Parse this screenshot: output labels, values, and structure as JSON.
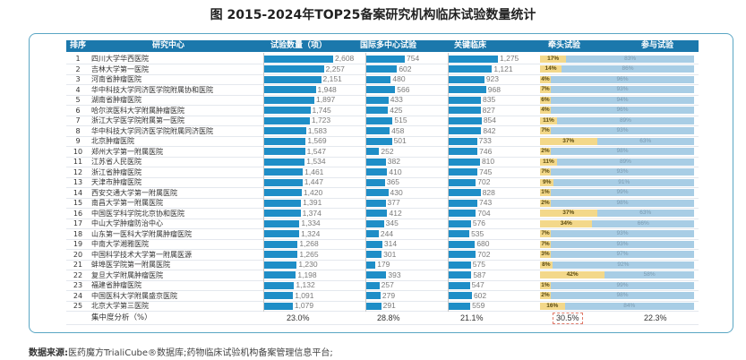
{
  "title": "图 2015-2024年TOP25备案研究机构临床试验数量统计",
  "colors": {
    "header_bg": "#1b78ac",
    "bar": "#1f8ec7",
    "lead": "#f3d88a",
    "participate": "#a8cde5",
    "frame": "#5aa6c4",
    "highlight": "#e07a6a"
  },
  "chart_data": {
    "type": "table",
    "title": "图 2015-2024年TOP25备案研究机构临床试验数量统计",
    "columns": [
      "排序",
      "研究中心",
      "试验数量（项）",
      "国际多中心试验",
      "关键临床",
      "牵头试验",
      "参与试验"
    ],
    "rows": [
      {
        "rank": "1",
        "center": "四川大学华西医院",
        "trials": 2608,
        "intl": 754,
        "key": 1275,
        "lead": 17,
        "participate": 83
      },
      {
        "rank": "2",
        "center": "吉林大学第一医院",
        "trials": 2257,
        "intl": 602,
        "key": 1121,
        "lead": 14,
        "participate": 86
      },
      {
        "rank": "3",
        "center": "河南省肿瘤医院",
        "trials": 2151,
        "intl": 480,
        "key": 923,
        "lead": 4,
        "participate": 96
      },
      {
        "rank": "4",
        "center": "华中科技大学同济医学院附属协和医院",
        "trials": 1948,
        "intl": 566,
        "key": 968,
        "lead": 7,
        "participate": 93
      },
      {
        "rank": "5",
        "center": "湖南省肿瘤医院",
        "trials": 1897,
        "intl": 433,
        "key": 835,
        "lead": 6,
        "participate": 94
      },
      {
        "rank": "6",
        "center": "哈尔滨医科大学附属肿瘤医院",
        "trials": 1745,
        "intl": 425,
        "key": 827,
        "lead": 4,
        "participate": 96
      },
      {
        "rank": "7",
        "center": "浙江大学医学院附属第一医院",
        "trials": 1723,
        "intl": 515,
        "key": 854,
        "lead": 11,
        "participate": 89
      },
      {
        "rank": "8",
        "center": "华中科技大学同济医学院附属同济医院",
        "trials": 1583,
        "intl": 458,
        "key": 842,
        "lead": 7,
        "participate": 93
      },
      {
        "rank": "9",
        "center": "北京肿瘤医院",
        "trials": 1569,
        "intl": 501,
        "key": 733,
        "lead": 37,
        "participate": 63
      },
      {
        "rank": "10",
        "center": "郑州大学第一附属医院",
        "trials": 1547,
        "intl": 252,
        "key": 746,
        "lead": 2,
        "participate": 98
      },
      {
        "rank": "11",
        "center": "江苏省人民医院",
        "trials": 1534,
        "intl": 382,
        "key": 810,
        "lead": 11,
        "participate": 89
      },
      {
        "rank": "12",
        "center": "浙江省肿瘤医院",
        "trials": 1461,
        "intl": 410,
        "key": 745,
        "lead": 7,
        "participate": 93
      },
      {
        "rank": "13",
        "center": "天津市肿瘤医院",
        "trials": 1447,
        "intl": 365,
        "key": 702,
        "lead": 9,
        "participate": 91
      },
      {
        "rank": "14",
        "center": "西安交通大学第一附属医院",
        "trials": 1420,
        "intl": 430,
        "key": 828,
        "lead": 1,
        "participate": 99
      },
      {
        "rank": "15",
        "center": "南昌大学第一附属医院",
        "trials": 1391,
        "intl": 377,
        "key": 743,
        "lead": 2,
        "participate": 98
      },
      {
        "rank": "16",
        "center": "中国医学科学院北京协和医院",
        "trials": 1374,
        "intl": 412,
        "key": 704,
        "lead": 37,
        "participate": 63
      },
      {
        "rank": "17",
        "center": "中山大学肿瘤防治中心",
        "trials": 1334,
        "intl": 345,
        "key": 576,
        "lead": 34,
        "participate": 66
      },
      {
        "rank": "18",
        "center": "山东第一医科大学附属肿瘤医院",
        "trials": 1324,
        "intl": 244,
        "key": 535,
        "lead": 7,
        "participate": 93
      },
      {
        "rank": "19",
        "center": "中南大学湘雅医院",
        "trials": 1268,
        "intl": 314,
        "key": 680,
        "lead": 7,
        "participate": 93
      },
      {
        "rank": "20",
        "center": "中国科学技术大学第一附属医源",
        "trials": 1265,
        "intl": 301,
        "key": 702,
        "lead": 3,
        "participate": 97
      },
      {
        "rank": "21",
        "center": "蚌埠医学院第一附属医院",
        "trials": 1230,
        "intl": 179,
        "key": 575,
        "lead": 8,
        "participate": 92
      },
      {
        "rank": "22",
        "center": "复旦大学附属肿瘤医院",
        "trials": 1198,
        "intl": 393,
        "key": 587,
        "lead": 42,
        "participate": 58
      },
      {
        "rank": "23",
        "center": "福建省肿瘤医院",
        "trials": 1132,
        "intl": 257,
        "key": 547,
        "lead": 1,
        "participate": 99
      },
      {
        "rank": "24",
        "center": "中国医科大学附属盛京医院",
        "trials": 1091,
        "intl": 279,
        "key": 602,
        "lead": 2,
        "participate": 98
      },
      {
        "rank": "25",
        "center": "北京大学第三医院",
        "trials": 1079,
        "intl": 291,
        "key": 559,
        "lead": 16,
        "participate": 84
      }
    ],
    "summary": {
      "label": "集中度分析（%）",
      "trials": "23.0%",
      "intl": "28.8%",
      "key": "21.1%",
      "lead": "30.5%",
      "participate": "22.3%"
    }
  },
  "source": {
    "label": "数据来源:",
    "text": "医药魔方TrialiCube®数据库;药物临床试验机构备案管理信息平台;"
  }
}
